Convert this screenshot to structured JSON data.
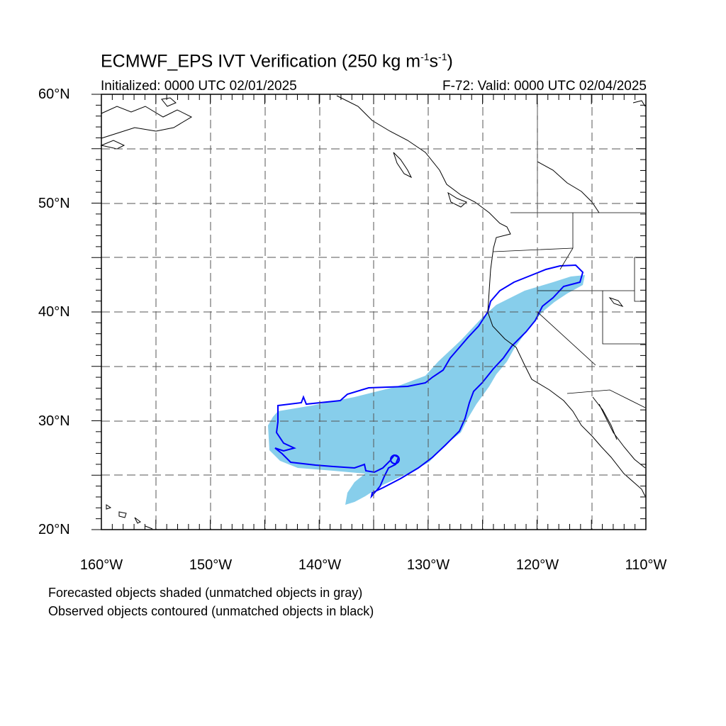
{
  "title": {
    "main": "ECMWF_EPS IVT Verification (250 kg m",
    "sup1": "-1",
    "mid": "s",
    "sup2": "-1",
    "close": ")"
  },
  "subtitle": {
    "initialized": "Initialized: 0000 UTC 02/01/2025",
    "valid": "F-72: Valid: 0000 UTC 02/04/2025"
  },
  "map": {
    "lon_range": [
      -160,
      -110
    ],
    "lat_range": [
      20,
      60
    ],
    "lat_labels": [
      "60°N",
      "50°N",
      "40°N",
      "30°N",
      "20°N"
    ],
    "lon_labels": [
      "160°W",
      "150°W",
      "140°W",
      "130°W",
      "120°W",
      "110°W"
    ],
    "colors": {
      "forecast_fill": "#87ceeb",
      "observed_contour": "#0000ff",
      "coastline": "#000000",
      "grid": "#555555"
    }
  },
  "legend": {
    "line1": "Forecasted objects shaded (unmatched objects in gray)",
    "line2": "Observed objects contoured (unmatched objects in black)"
  }
}
